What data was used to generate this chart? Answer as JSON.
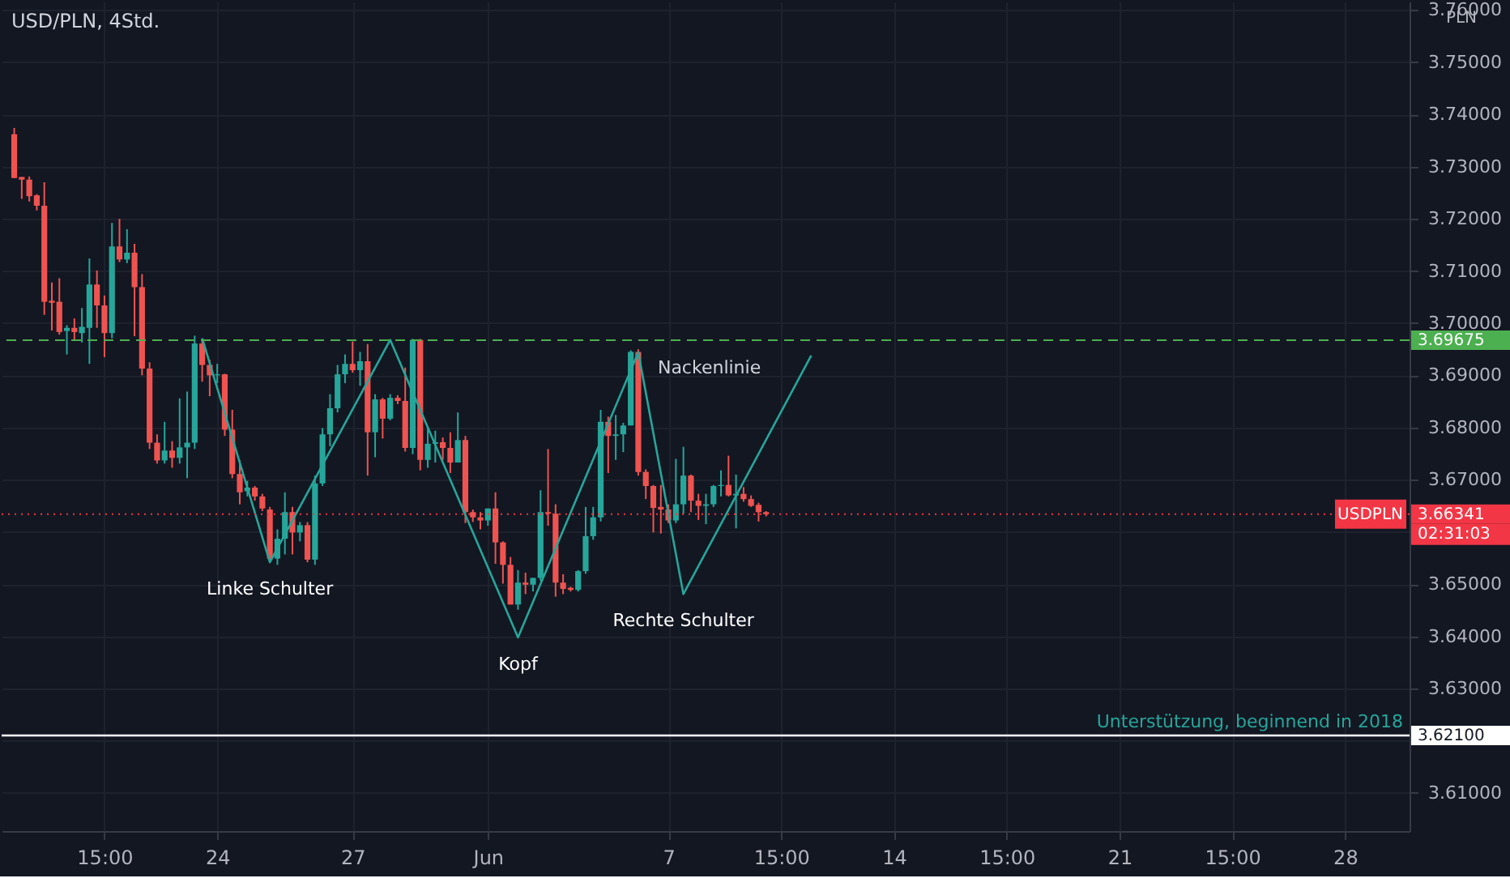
{
  "chart_data": {
    "type": "candlestick",
    "title": "USD/PLN, 4Std.",
    "categories": [
      null,
      null,
      null,
      null,
      null,
      null,
      null,
      null,
      null,
      null,
      null,
      null,
      "15:00",
      null,
      null,
      null,
      null,
      null,
      null,
      null,
      null,
      null,
      null,
      null,
      null,
      null,
      null,
      "24",
      null,
      null,
      null,
      null,
      null,
      null,
      null,
      null,
      null,
      null,
      null,
      null,
      null,
      null,
      null,
      null,
      null,
      "27",
      null,
      null,
      null,
      null,
      null,
      null,
      null,
      null,
      null,
      null,
      null,
      null,
      null,
      null,
      null,
      null,
      null,
      "Jun",
      null,
      null,
      null,
      null,
      null,
      null,
      null,
      null,
      null,
      null,
      null,
      null,
      null,
      null,
      null,
      null,
      null,
      null,
      null,
      null,
      null,
      null,
      null,
      "7",
      null,
      null,
      null,
      null,
      null,
      null,
      null,
      null,
      null,
      null,
      null,
      null,
      null,
      null,
      "15:00",
      null,
      null,
      null,
      null,
      null,
      null,
      null,
      null,
      null,
      null,
      null,
      null,
      null,
      null,
      "14",
      null,
      null,
      null,
      null,
      null,
      null,
      null,
      null,
      null,
      null,
      null,
      null,
      null,
      null,
      "15:00",
      null,
      null,
      null,
      null,
      null,
      null,
      null,
      null,
      null,
      null,
      null,
      null,
      null,
      null,
      "21",
      null,
      null,
      null,
      null,
      null,
      null,
      null,
      null,
      null,
      null,
      null,
      null,
      null,
      null,
      "15:00",
      null,
      null,
      null,
      null,
      null,
      null,
      null,
      null,
      null,
      null,
      null,
      null,
      null,
      null,
      "28",
      null,
      null,
      null,
      null,
      null,
      null,
      null
    ],
    "ohlc": [
      [
        3.7362,
        3.7374,
        3.7278,
        3.7278
      ],
      [
        3.728,
        3.728,
        3.7238,
        3.7275
      ],
      [
        3.7275,
        3.7281,
        3.7233,
        3.7243
      ],
      [
        3.7245,
        3.7247,
        3.7216,
        3.7225
      ],
      [
        3.7225,
        3.727,
        3.7016,
        3.7041
      ],
      [
        3.7043,
        3.7078,
        3.6986,
        3.7039
      ],
      [
        3.7041,
        3.7086,
        3.6978,
        3.6983
      ],
      [
        3.6985,
        3.6996,
        3.694,
        3.6991
      ],
      [
        3.6991,
        3.7009,
        3.6969,
        3.6983
      ],
      [
        3.6981,
        3.7029,
        3.6963,
        3.6993
      ],
      [
        3.6991,
        3.7124,
        3.6922,
        3.7074
      ],
      [
        3.7074,
        3.7101,
        3.6991,
        3.7034
      ],
      [
        3.7034,
        3.7053,
        3.6935,
        3.6981
      ],
      [
        3.6981,
        3.7192,
        3.6971,
        3.7147
      ],
      [
        3.7147,
        3.72,
        3.7117,
        3.7122
      ],
      [
        3.7122,
        3.718,
        3.7115,
        3.7135
      ],
      [
        3.7135,
        3.7152,
        3.6975,
        3.7069
      ],
      [
        3.7069,
        3.7094,
        3.69,
        3.6913
      ],
      [
        3.6913,
        3.6925,
        3.6759,
        3.6771
      ],
      [
        3.6771,
        3.6787,
        3.6731,
        3.6737
      ],
      [
        3.6737,
        3.6811,
        3.6731,
        3.6756
      ],
      [
        3.6756,
        3.6774,
        3.6723,
        3.6742
      ],
      [
        3.6742,
        3.6856,
        3.6731,
        3.6762
      ],
      [
        3.6762,
        3.6869,
        3.6703,
        3.6771
      ],
      [
        3.6771,
        3.6976,
        3.6759,
        3.6961
      ],
      [
        3.6961,
        3.697,
        3.6888,
        3.692
      ],
      [
        3.692,
        3.693,
        3.686,
        3.69
      ],
      [
        3.69,
        3.6922,
        3.6885,
        3.6902
      ],
      [
        3.6902,
        3.6903,
        3.6784,
        3.6796
      ],
      [
        3.6796,
        3.6834,
        3.6703,
        3.6711
      ],
      [
        3.6711,
        3.6738,
        3.6653,
        3.6676
      ],
      [
        3.6678,
        3.6698,
        3.6668,
        3.6685
      ],
      [
        3.6685,
        3.6688,
        3.666,
        3.6668
      ],
      [
        3.6668,
        3.6673,
        3.664,
        3.6645
      ],
      [
        3.6643,
        3.6648,
        3.6542,
        3.6549
      ],
      [
        3.6549,
        3.6605,
        3.6537,
        3.6587
      ],
      [
        3.6587,
        3.6676,
        3.6557,
        3.6638
      ],
      [
        3.6638,
        3.6648,
        3.6557,
        3.6599
      ],
      [
        3.6599,
        3.6619,
        3.6582,
        3.6613
      ],
      [
        3.6613,
        3.6619,
        3.6542,
        3.6547
      ],
      [
        3.6547,
        3.6708,
        3.6537,
        3.6693
      ],
      [
        3.6693,
        3.6799,
        3.6688,
        3.6787
      ],
      [
        3.6787,
        3.6864,
        3.6764,
        3.6837
      ],
      [
        3.6837,
        3.692,
        3.6829,
        3.6902
      ],
      [
        3.6902,
        3.694,
        3.6885,
        3.6922
      ],
      [
        3.6922,
        3.6965,
        3.6905,
        3.691
      ],
      [
        3.691,
        3.6945,
        3.688,
        3.6927
      ],
      [
        3.6927,
        3.696,
        3.6708,
        3.6791
      ],
      [
        3.6791,
        3.6864,
        3.6743,
        3.6854
      ],
      [
        3.6854,
        3.6857,
        3.6779,
        3.6817
      ],
      [
        3.6817,
        3.6864,
        3.6814,
        3.6857
      ],
      [
        3.6857,
        3.6862,
        3.6845,
        3.6851
      ],
      [
        3.6851,
        3.6915,
        3.6754,
        3.6761
      ],
      [
        3.6761,
        3.697,
        3.6749,
        3.6968
      ],
      [
        3.6968,
        3.697,
        3.6718,
        3.6738
      ],
      [
        3.6738,
        3.6799,
        3.6723,
        3.6769
      ],
      [
        3.6769,
        3.6794,
        3.6733,
        3.6772
      ],
      [
        3.6772,
        3.6781,
        3.6738,
        3.6761
      ],
      [
        3.6761,
        3.6791,
        3.6713,
        3.6733
      ],
      [
        3.6733,
        3.6829,
        3.6733,
        3.6776
      ],
      [
        3.6776,
        3.6784,
        3.6617,
        3.6638
      ],
      [
        3.6638,
        3.6643,
        3.6619,
        3.6628
      ],
      [
        3.6628,
        3.6638,
        3.6605,
        3.6622
      ],
      [
        3.6622,
        3.6645,
        3.6612,
        3.6645
      ],
      [
        3.6645,
        3.6676,
        3.6539,
        3.658
      ],
      [
        3.658,
        3.6582,
        3.6501,
        3.6537
      ],
      [
        3.6537,
        3.6552,
        3.6461,
        3.6461
      ],
      [
        3.6461,
        3.6527,
        3.6451,
        3.6503
      ],
      [
        3.6503,
        3.6522,
        3.6481,
        3.6499
      ],
      [
        3.6499,
        3.6512,
        3.6486,
        3.6512
      ],
      [
        3.6512,
        3.668,
        3.6506,
        3.6638
      ],
      [
        3.6638,
        3.6759,
        3.6612,
        3.6635
      ],
      [
        3.6635,
        3.6653,
        3.6476,
        3.6503
      ],
      [
        3.6503,
        3.6519,
        3.6481,
        3.6491
      ],
      [
        3.6493,
        3.6495,
        3.6486,
        3.6489
      ],
      [
        3.6489,
        3.6527,
        3.6486,
        3.6525
      ],
      [
        3.6525,
        3.6648,
        3.652,
        3.6592
      ],
      [
        3.6592,
        3.6648,
        3.6585,
        3.6628
      ],
      [
        3.6628,
        3.6834,
        3.662,
        3.6811
      ],
      [
        3.6811,
        3.6821,
        3.6713,
        3.6784
      ],
      [
        3.6784,
        3.6824,
        3.6738,
        3.6787
      ],
      [
        3.6787,
        3.6809,
        3.6753,
        3.6804
      ],
      [
        3.6804,
        3.6948,
        3.6804,
        3.6945
      ],
      [
        3.6945,
        3.695,
        3.6708,
        3.6715
      ],
      [
        3.6715,
        3.672,
        3.6663,
        3.6688
      ],
      [
        3.6688,
        3.669,
        3.6599,
        3.6646
      ],
      [
        3.6648,
        3.669,
        3.6597,
        3.6643
      ],
      [
        3.6643,
        3.6653,
        3.6617,
        3.6622
      ],
      [
        3.6622,
        3.674,
        3.6617,
        3.6653
      ],
      [
        3.6653,
        3.6763,
        3.6635,
        3.6708
      ],
      [
        3.6708,
        3.671,
        3.6638,
        3.666
      ],
      [
        3.666,
        3.6673,
        3.6623,
        3.665
      ],
      [
        3.665,
        3.6673,
        3.6615,
        3.6653
      ],
      [
        3.6653,
        3.669,
        3.6648,
        3.6688
      ],
      [
        3.6688,
        3.6718,
        3.6668,
        3.669
      ],
      [
        3.669,
        3.6746,
        3.6668,
        3.667
      ],
      [
        3.667,
        3.671,
        3.6607,
        3.6673
      ],
      [
        3.6673,
        3.6686,
        3.6658,
        3.6663
      ],
      [
        3.6663,
        3.667,
        3.6648,
        3.665
      ],
      [
        3.6652,
        3.6656,
        3.662,
        3.6638
      ],
      [
        3.6638,
        3.664,
        3.663,
        3.6634
      ],
      null,
      null,
      null,
      null,
      null,
      null,
      null,
      null,
      null,
      null,
      null,
      null,
      null,
      null,
      null,
      null,
      null,
      null,
      null,
      null,
      null,
      null,
      null,
      null,
      null,
      null,
      null,
      null,
      null,
      null,
      null,
      null,
      null,
      null,
      null,
      null,
      null,
      null,
      null,
      null,
      null,
      null,
      null,
      null,
      null,
      null,
      null,
      null,
      null,
      null,
      null,
      null,
      null,
      null,
      null,
      null,
      null,
      null,
      null,
      null,
      null,
      null,
      null,
      null,
      null,
      null,
      null,
      null,
      null,
      null,
      null,
      null,
      null,
      null,
      null,
      null,
      null,
      null,
      null,
      null,
      null,
      null,
      null,
      null
    ],
    "colors": [
      "#ef5350",
      "#ef5350",
      "#ef5350",
      "#ef5350",
      "#ef5350",
      "#ef5350",
      "#ef5350",
      "#26a69a",
      "#ef5350",
      "#26a69a",
      "#26a69a",
      "#ef5350",
      "#ef5350",
      "#26a69a",
      "#ef5350",
      "#26a69a",
      "#ef5350",
      "#ef5350",
      "#ef5350",
      "#ef5350",
      "#26a69a",
      "#ef5350",
      "#26a69a",
      "#26a69a",
      "#26a69a",
      "#ef5350",
      "#ef5350",
      "#26a69a",
      "#ef5350",
      "#ef5350",
      "#ef5350",
      "#26a69a",
      "#ef5350",
      "#ef5350",
      "#ef5350",
      "#26a69a",
      "#26a69a",
      "#ef5350",
      "#26a69a",
      "#ef5350",
      "#26a69a",
      "#26a69a",
      "#26a69a",
      "#26a69a",
      "#26a69a",
      "#ef5350",
      "#26a69a",
      "#ef5350",
      "#26a69a",
      "#ef5350",
      "#26a69a",
      "#ef5350",
      "#ef5350",
      "#26a69a",
      "#ef5350",
      "#26a69a",
      "#26a69a",
      "#ef5350",
      "#ef5350",
      "#26a69a",
      "#ef5350",
      "#ef5350",
      "#ef5350",
      "#26a69a",
      "#ef5350",
      "#ef5350",
      "#ef5350",
      "#26a69a",
      "#ef5350",
      "#26a69a",
      "#26a69a",
      "#ef5350",
      "#ef5350",
      "#ef5350",
      "#ef5350",
      "#26a69a",
      "#26a69a",
      "#26a69a",
      "#26a69a",
      "#ef5350",
      "#26a69a",
      "#26a69a",
      "#26a69a",
      "#ef5350",
      "#ef5350",
      "#ef5350",
      "#ef5350",
      "#ef5350",
      "#26a69a",
      "#26a69a",
      "#ef5350",
      "#ef5350",
      "#26a69a",
      "#26a69a",
      "#26a69a",
      "#ef5350",
      "#26a69a",
      "#ef5350",
      "#ef5350",
      "#ef5350",
      "#ef5350",
      null,
      null,
      null,
      null,
      null,
      null,
      null,
      null,
      null,
      null,
      null,
      null,
      null,
      null,
      null,
      null,
      null,
      null,
      null,
      null,
      null,
      null,
      null,
      null,
      null,
      null,
      null,
      null,
      null,
      null,
      null,
      null,
      null,
      null,
      null,
      null,
      null,
      null,
      null,
      null,
      null,
      null,
      null,
      null,
      null,
      null,
      null,
      null,
      null,
      null,
      null,
      null,
      null,
      null,
      null,
      null,
      null,
      null,
      null,
      null,
      null,
      null,
      null,
      null,
      null,
      null,
      null,
      null,
      null,
      null,
      null,
      null,
      null,
      null,
      null,
      null,
      null,
      null,
      null,
      null,
      null,
      null,
      null,
      null
    ],
    "series": [
      {
        "type": "line",
        "color": "#26a69a",
        "values": [
          null,
          null,
          null,
          null,
          null,
          null,
          null,
          null,
          null,
          null,
          null,
          null,
          null,
          null,
          null,
          null,
          null,
          null,
          null,
          null,
          null,
          null,
          null,
          null,
          null,
          3.6971,
          null,
          null,
          null,
          null,
          null,
          null,
          null,
          null,
          3.6542,
          null,
          null,
          null,
          null,
          null,
          null,
          null,
          null,
          null,
          null,
          null,
          null,
          null,
          null,
          null,
          3.6968,
          null,
          null,
          null,
          null,
          null,
          null,
          null,
          null,
          null,
          null,
          null,
          null,
          null,
          null,
          null,
          null,
          3.6398,
          null,
          null,
          null,
          null,
          null,
          null,
          null,
          null,
          null,
          null,
          null,
          null,
          null,
          null,
          null,
          3.6944,
          null,
          null,
          null,
          null,
          null,
          3.6481,
          null,
          null,
          null,
          null,
          null,
          null,
          null,
          null,
          null,
          null,
          null,
          null,
          null,
          null,
          null,
          null,
          3.6938,
          null,
          null,
          null,
          null,
          null,
          null,
          null,
          null,
          null,
          null,
          null,
          null,
          null,
          null,
          null,
          null,
          null,
          null,
          null,
          null,
          null,
          null,
          null,
          null,
          null,
          null,
          null,
          null,
          null,
          null,
          null,
          null,
          null,
          null,
          null,
          null,
          null,
          null,
          null,
          null,
          null,
          null,
          null,
          null,
          null,
          null,
          null,
          null,
          null,
          null,
          null,
          null,
          null,
          null,
          null,
          null,
          null,
          null,
          null,
          null,
          null,
          null,
          null,
          null,
          null,
          null,
          null,
          null,
          null,
          null,
          null,
          null,
          null,
          null,
          null,
          null,
          null,
          null
        ]
      }
    ],
    "ylim": [
      3.6027,
      3.7616
    ],
    "yticks": [
      {
        "value": 3.61,
        "label": "3.61000"
      },
      {
        "value": 3.62,
        "label": null
      },
      {
        "value": 3.63,
        "label": "3.63000"
      },
      {
        "value": 3.64,
        "label": "3.64000"
      },
      {
        "value": 3.65,
        "label": "3.65000"
      },
      {
        "value": 3.66,
        "label": null
      },
      {
        "value": 3.67,
        "label": "3.67000"
      },
      {
        "value": 3.68,
        "label": "3.68000"
      },
      {
        "value": 3.69,
        "label": "3.69000"
      },
      {
        "value": 3.7,
        "label": "3.70000"
      },
      {
        "value": 3.71,
        "label": "3.71000"
      },
      {
        "value": 3.72,
        "label": "3.72000"
      },
      {
        "value": 3.73,
        "label": "3.73000"
      },
      {
        "value": 3.74,
        "label": "3.74000"
      },
      {
        "value": 3.75,
        "label": "3.75000"
      },
      {
        "value": 3.76,
        "label": "3.76000"
      }
    ],
    "ref_lines": [
      {
        "axis": "y",
        "value": 3.69675,
        "label": null,
        "color": "#4caf50",
        "line_style": "dashed"
      },
      {
        "axis": "y",
        "value": 3.621,
        "label": "Unterstützung, beginnend in 2018",
        "color": "#ffffff",
        "line_style": "solid"
      },
      {
        "axis": "y",
        "value": 3.66341,
        "label": "USDPLN",
        "color": "#f23645",
        "line_style": "dotted"
      }
    ],
    "annotations": [
      "PLN",
      "3.69675",
      "3.62100",
      "3.66341",
      "02:31:03",
      "Linke Schulter",
      "Kopf",
      "Rechte Schulter",
      "Nackenlinie"
    ],
    "grid": true
  }
}
